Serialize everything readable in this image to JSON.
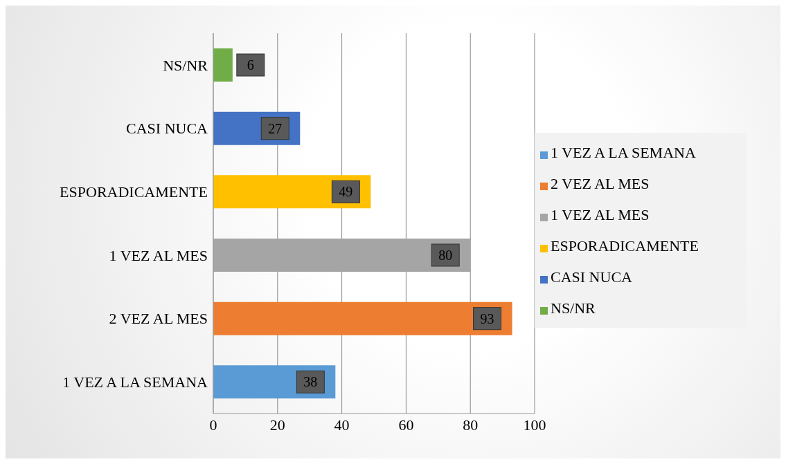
{
  "chart_data": {
    "type": "bar",
    "orientation": "horizontal",
    "stacked": true,
    "categories": [
      "NS/NR",
      "CASI NUCA",
      "ESPORADICAMENTE",
      "1 VEZ AL MES",
      "2 VEZ AL MES",
      "1 VEZ A LA SEMANA"
    ],
    "series": [
      {
        "name": "1 VEZ A LA SEMANA",
        "color": "#5b9bd5",
        "values": [
          null,
          null,
          null,
          null,
          null,
          38
        ]
      },
      {
        "name": "2 VEZ AL MES",
        "color": "#ed7d31",
        "values": [
          null,
          null,
          null,
          null,
          93,
          null
        ]
      },
      {
        "name": "1 VEZ AL MES",
        "color": "#a5a5a5",
        "values": [
          null,
          null,
          null,
          80,
          null,
          null
        ]
      },
      {
        "name": "ESPORADICAMENTE",
        "color": "#ffc000",
        "values": [
          null,
          null,
          49,
          null,
          null,
          null
        ]
      },
      {
        "name": "CASI NUCA",
        "color": "#4472c4",
        "values": [
          null,
          27,
          null,
          null,
          null,
          null
        ]
      },
      {
        "name": "NS/NR",
        "color": "#70ad47",
        "values": [
          6,
          null,
          null,
          null,
          null,
          null
        ]
      }
    ],
    "xlim": [
      0,
      100
    ],
    "xticks": [
      0,
      20,
      40,
      60,
      80,
      100
    ],
    "grid": "x",
    "legend": "right",
    "data_labels": true
  }
}
